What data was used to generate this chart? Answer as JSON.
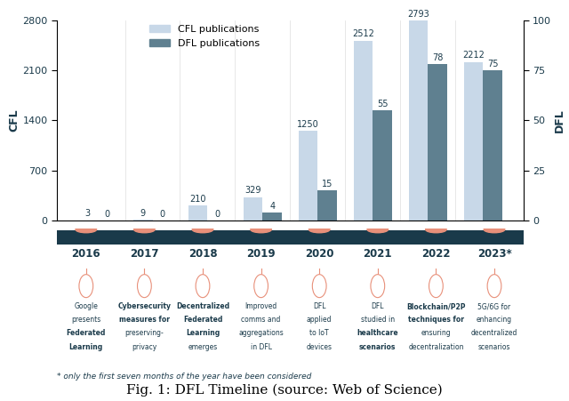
{
  "years": [
    "2016",
    "2017",
    "2018",
    "2019",
    "2020",
    "2021",
    "2022",
    "2023*"
  ],
  "cfl_values": [
    3,
    9,
    210,
    329,
    1250,
    2512,
    2793,
    2212
  ],
  "dfl_values": [
    0,
    0,
    0,
    4,
    15,
    55,
    78,
    75
  ],
  "cfl_color": "#c8d8e8",
  "dfl_color": "#5f8090",
  "timeline_color": "#1a3a4a",
  "dot_color": "#e8907a",
  "left_yticks": [
    0,
    700,
    1400,
    2100,
    2800
  ],
  "right_yticks": [
    0,
    25,
    50,
    75,
    100
  ],
  "left_ylabel": "CFL",
  "right_ylabel": "DFL",
  "cfl_label": "CFL publications",
  "dfl_label": "DFL publications",
  "year_labels": [
    "2016",
    "2017",
    "2018",
    "2019",
    "2020",
    "2021",
    "2022",
    "2023*"
  ],
  "annotations": [
    "Google\npresents\nFederated\nLearning",
    "Cybersecurity\nmeasures for\npreserving-\nprivacy",
    "Decentralized\nFederated\nLearning\nemerges",
    "Improved\ncomms and\naggregations\nin DFL",
    "DFL\napplied\nto IoT\ndevices",
    "DFL\nstudied in\nhealthcare\nscenarios",
    "Blockchain/P2P\ntechniques for\nensuring\ndecentralization",
    "5G/6G for\nenhancing\ndecentralized\nscenarios"
  ],
  "bold_words": [
    [
      "Federated",
      "Learning"
    ],
    [
      "Cybersecurity",
      "measures"
    ],
    [
      "Decentralized",
      "Federated",
      "Learning"
    ],
    [],
    [],
    [
      "healthcare",
      "scenarios"
    ],
    [
      "Blockchain/P2P",
      "techniques"
    ],
    []
  ],
  "footnote": "* only the first seven months of the year have been considered",
  "fig_title": "Fig. 1: DFL Timeline (source: Web of Science)",
  "bar_width": 0.35
}
